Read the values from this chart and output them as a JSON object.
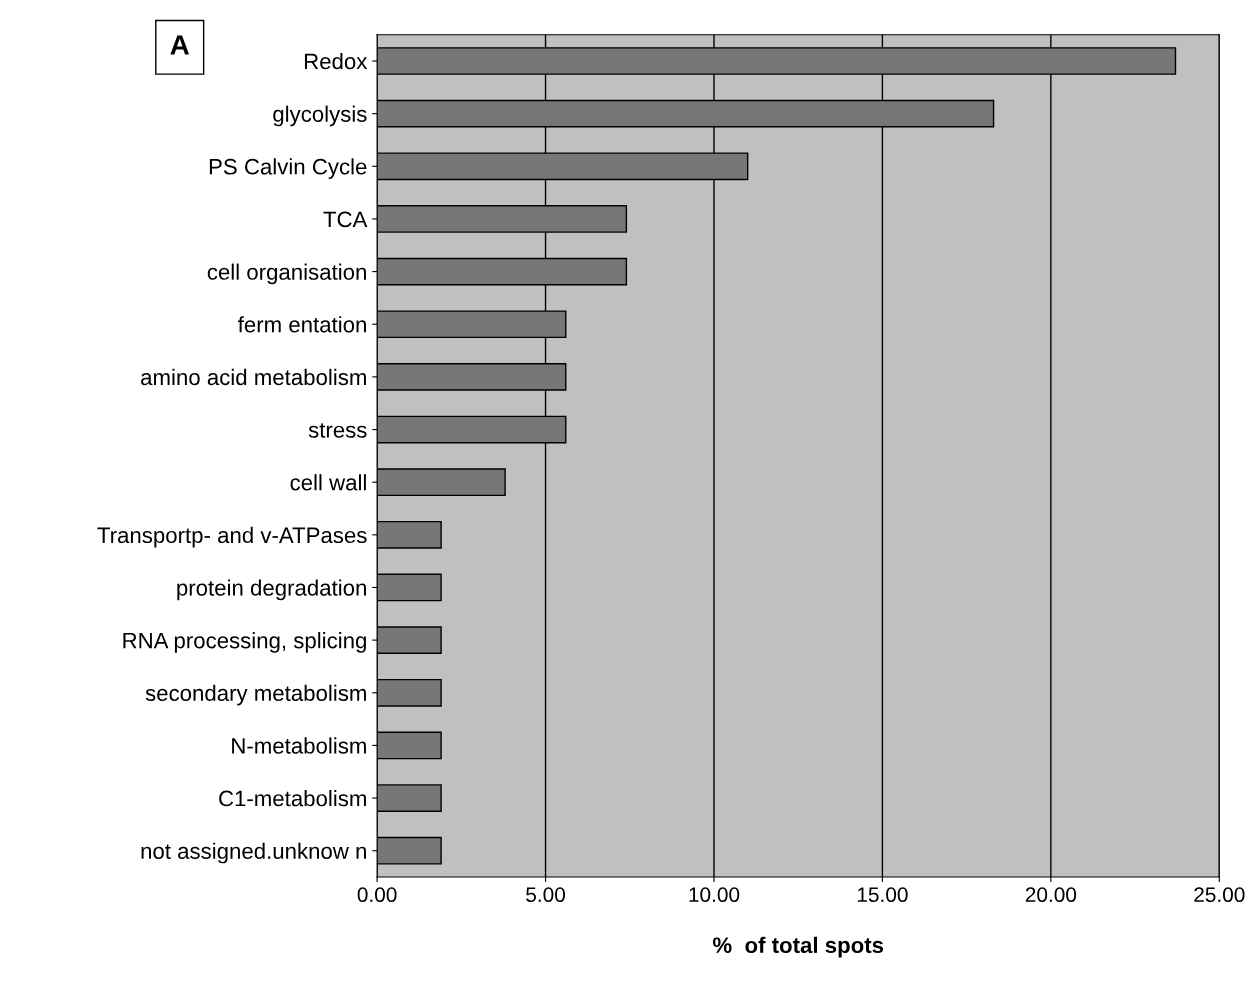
{
  "chart_data": {
    "type": "bar",
    "orientation": "horizontal",
    "xlabel": "%  of total spots",
    "annotations": [
      "A"
    ],
    "categories": [
      "Redox",
      "glycolysis",
      "PS Calvin Cycle",
      "TCA",
      "cell organisation",
      "ferm entation",
      "amino acid metabolism",
      "stress",
      "cell wall",
      "Transportp- and v-ATPases",
      "protein degradation",
      "RNA processing, splicing",
      "secondary metabolism",
      "N-metabolism",
      "C1-metabolism",
      "not assigned.unknow n"
    ],
    "values": [
      23.7,
      18.3,
      11.0,
      7.4,
      7.4,
      5.6,
      5.6,
      5.6,
      3.8,
      1.9,
      1.9,
      1.9,
      1.9,
      1.9,
      1.9,
      1.9
    ],
    "color": "#777777",
    "xlim": [
      0,
      25
    ],
    "xticks": [
      {
        "value": 0,
        "label": "0.00"
      },
      {
        "value": 5,
        "label": "5.00"
      },
      {
        "value": 10,
        "label": "10.00"
      },
      {
        "value": 15,
        "label": "15.00"
      },
      {
        "value": 20,
        "label": "20.00"
      },
      {
        "value": 25,
        "label": "25.00"
      }
    ],
    "grid": "x"
  }
}
